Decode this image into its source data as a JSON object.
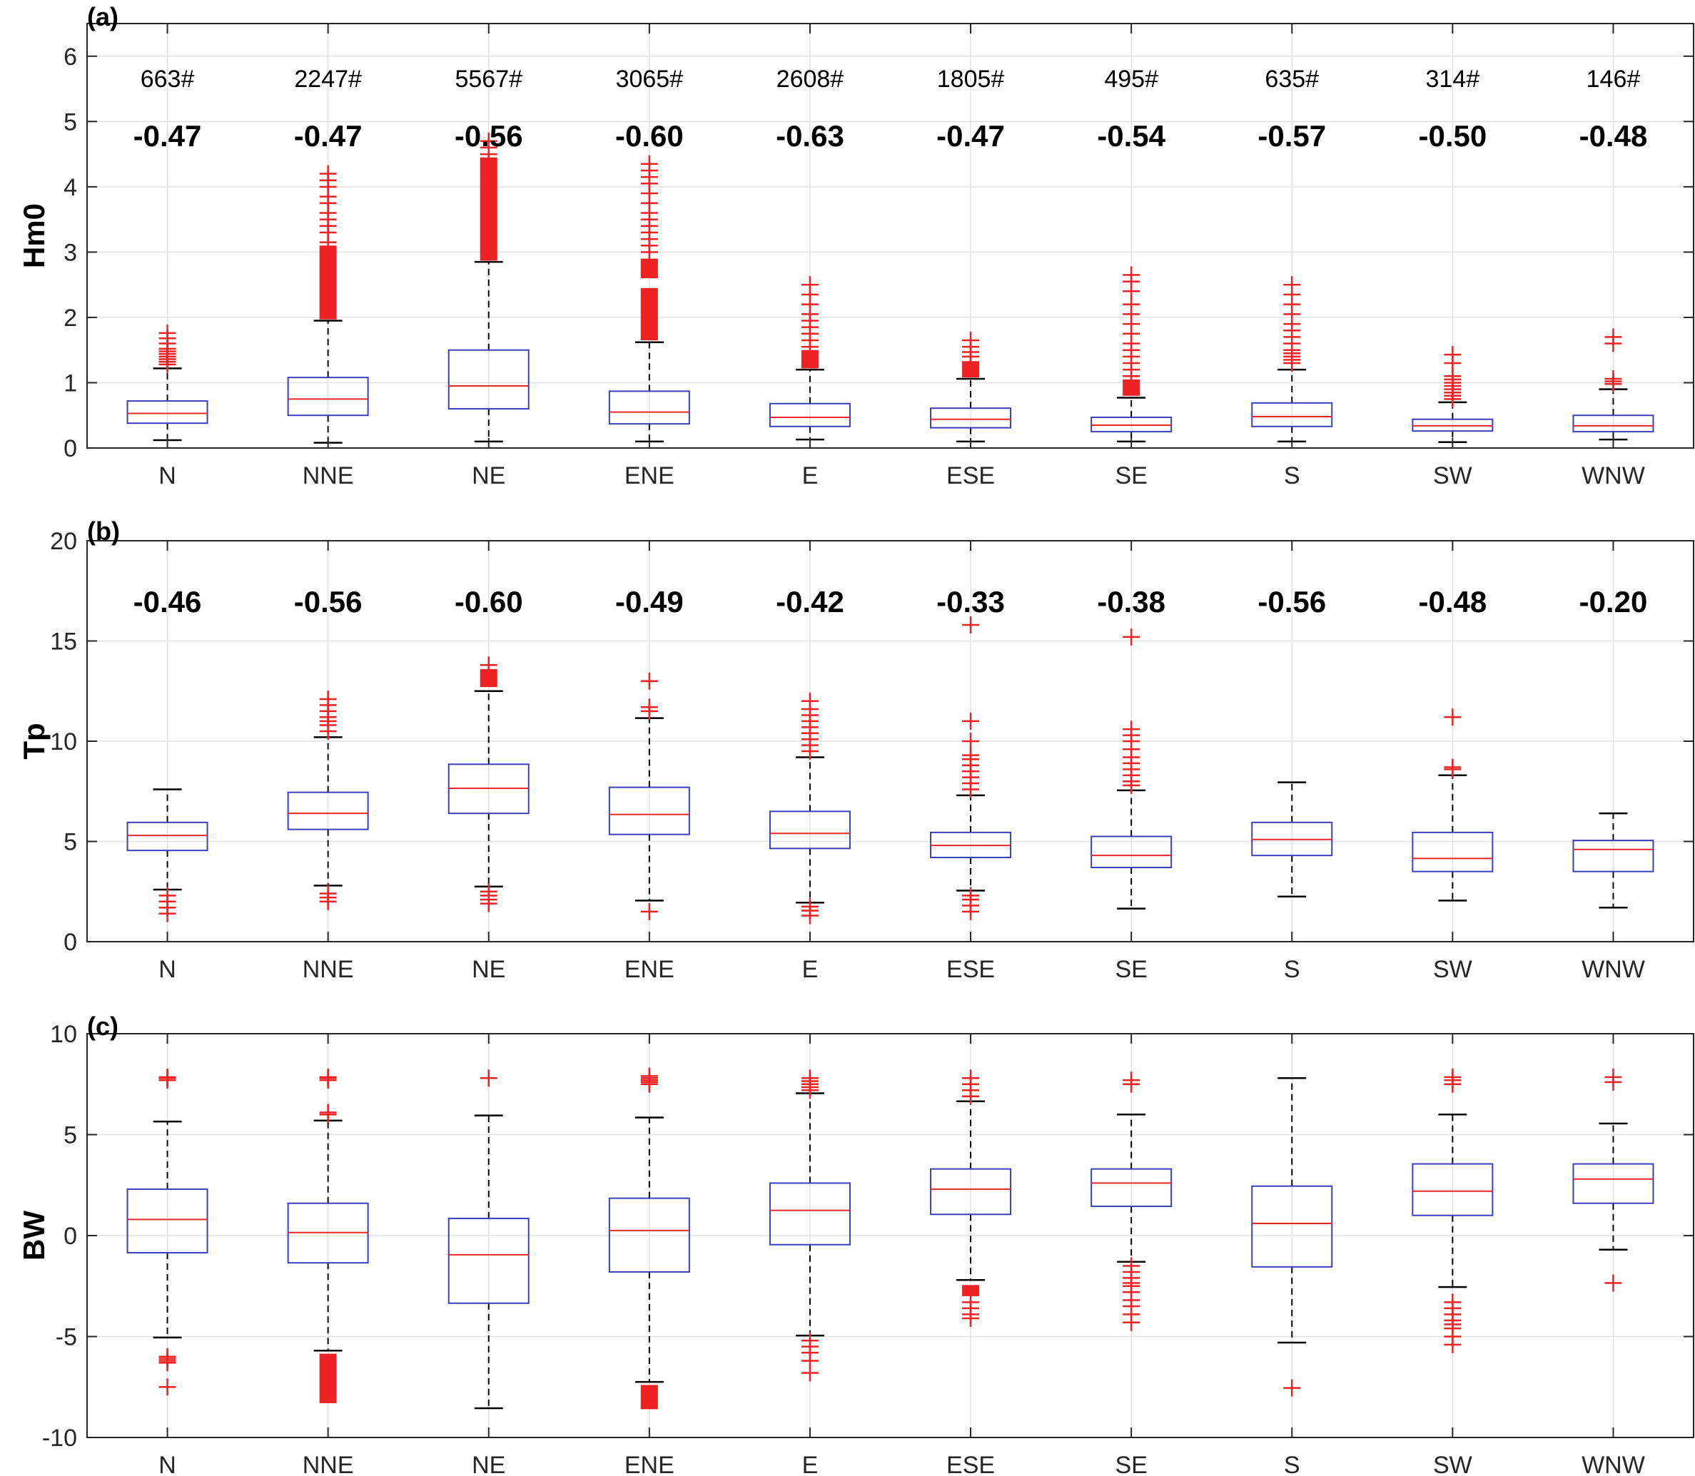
{
  "chart_data": [
    {
      "type": "box",
      "panel_label": "(a)",
      "ylabel": "Hm0",
      "ylim": [
        0,
        6.5
      ],
      "yticks": [
        0,
        1,
        2,
        3,
        4,
        5,
        6
      ],
      "ytick_labels": [
        "0",
        "1",
        "2",
        "3",
        "4",
        "5",
        "6"
      ],
      "grid": true,
      "categories": [
        "N",
        "NNE",
        "NE",
        "ENE",
        "E",
        "ESE",
        "SE",
        "S",
        "SW",
        "WNW"
      ],
      "counts": [
        "663#",
        "2247#",
        "5567#",
        "3065#",
        "2608#",
        "1805#",
        "495#",
        "635#",
        "314#",
        "146#"
      ],
      "correlations": [
        "-0.47",
        "-0.47",
        "-0.56",
        "-0.60",
        "-0.63",
        "-0.47",
        "-0.54",
        "-0.57",
        "-0.50",
        "-0.48"
      ],
      "boxes": [
        {
          "q1": 0.38,
          "median": 0.53,
          "q3": 0.72,
          "whisker_low": 0.12,
          "whisker_high": 1.22,
          "outliers": [
            1.28,
            1.32,
            1.36,
            1.4,
            1.44,
            1.48,
            1.52,
            1.6,
            1.68,
            1.76
          ],
          "dense": []
        },
        {
          "q1": 0.5,
          "median": 0.75,
          "q3": 1.08,
          "whisker_low": 0.08,
          "whisker_high": 1.95,
          "outliers": [
            3.15,
            3.3,
            3.4,
            3.5,
            3.6,
            3.75,
            3.85,
            4.0,
            4.1,
            4.2
          ],
          "dense": [
            [
              1.97,
              3.1
            ]
          ]
        },
        {
          "q1": 0.6,
          "median": 0.95,
          "q3": 1.5,
          "whisker_low": 0.1,
          "whisker_high": 2.85,
          "outliers": [
            4.5,
            4.6,
            4.7
          ],
          "dense": [
            [
              2.87,
              4.45
            ]
          ]
        },
        {
          "q1": 0.37,
          "median": 0.55,
          "q3": 0.87,
          "whisker_low": 0.1,
          "whisker_high": 1.62,
          "outliers": [
            3.0,
            3.1,
            3.2,
            3.3,
            3.4,
            3.5,
            3.6,
            3.75,
            3.9,
            4.05,
            4.15,
            4.25,
            4.35
          ],
          "dense": [
            [
              1.65,
              2.45
            ],
            [
              2.6,
              2.9
            ]
          ]
        },
        {
          "q1": 0.33,
          "median": 0.47,
          "q3": 0.68,
          "whisker_low": 0.13,
          "whisker_high": 1.2,
          "outliers": [
            1.55,
            1.65,
            1.75,
            1.85,
            1.95,
            2.05,
            2.2,
            2.35,
            2.5
          ],
          "dense": [
            [
              1.22,
              1.5
            ]
          ]
        },
        {
          "q1": 0.31,
          "median": 0.44,
          "q3": 0.61,
          "whisker_low": 0.1,
          "whisker_high": 1.06,
          "outliers": [
            1.4,
            1.47,
            1.55,
            1.65
          ],
          "dense": [
            [
              1.08,
              1.33
            ]
          ]
        },
        {
          "q1": 0.25,
          "median": 0.35,
          "q3": 0.47,
          "whisker_low": 0.1,
          "whisker_high": 0.77,
          "outliers": [
            1.1,
            1.2,
            1.3,
            1.4,
            1.5,
            1.6,
            1.75,
            1.9,
            2.05,
            2.2,
            2.4,
            2.55,
            2.65
          ],
          "dense": [
            [
              0.8,
              1.05
            ]
          ]
        },
        {
          "q1": 0.33,
          "median": 0.48,
          "q3": 0.69,
          "whisker_low": 0.1,
          "whisker_high": 1.2,
          "outliers": [
            1.3,
            1.35,
            1.4,
            1.45,
            1.5,
            1.6,
            1.7,
            1.8,
            1.9,
            2.05,
            2.2,
            2.35,
            2.5
          ],
          "dense": []
        },
        {
          "q1": 0.26,
          "median": 0.34,
          "q3": 0.44,
          "whisker_low": 0.09,
          "whisker_high": 0.7,
          "outliers": [
            0.75,
            0.8,
            0.85,
            0.9,
            0.95,
            1.0,
            1.05,
            1.1,
            1.3,
            1.43
          ],
          "dense": []
        },
        {
          "q1": 0.25,
          "median": 0.34,
          "q3": 0.5,
          "whisker_low": 0.13,
          "whisker_high": 0.9,
          "outliers": [
            0.98,
            1.02,
            1.06,
            1.6,
            1.7
          ],
          "dense": []
        }
      ]
    },
    {
      "type": "box",
      "panel_label": "(b)",
      "ylabel": "Tp",
      "ylim": [
        0,
        20
      ],
      "yticks": [
        0,
        5,
        10,
        15,
        20
      ],
      "ytick_labels": [
        "0",
        "5",
        "10",
        "15",
        "20"
      ],
      "grid": true,
      "categories": [
        "N",
        "NNE",
        "NE",
        "ENE",
        "E",
        "ESE",
        "SE",
        "S",
        "SW",
        "WNW"
      ],
      "correlations": [
        "-0.46",
        "-0.56",
        "-0.60",
        "-0.49",
        "-0.42",
        "-0.33",
        "-0.38",
        "-0.56",
        "-0.48",
        "-0.20"
      ],
      "boxes": [
        {
          "q1": 4.55,
          "median": 5.3,
          "q3": 5.95,
          "whisker_low": 2.6,
          "whisker_high": 7.6,
          "outliers": [
            2.3,
            2.0,
            1.7,
            1.4
          ],
          "dense": []
        },
        {
          "q1": 5.6,
          "median": 6.4,
          "q3": 7.45,
          "whisker_low": 2.8,
          "whisker_high": 10.2,
          "outliers": [
            2.4,
            2.2,
            2.0,
            10.5,
            10.8,
            11.0,
            11.2,
            11.5,
            11.8,
            12.1
          ],
          "dense": []
        },
        {
          "q1": 6.4,
          "median": 7.65,
          "q3": 8.85,
          "whisker_low": 2.75,
          "whisker_high": 12.5,
          "outliers": [
            2.5,
            2.3,
            2.1,
            1.9,
            13.8
          ],
          "dense": [
            [
              12.7,
              13.6
            ]
          ]
        },
        {
          "q1": 5.35,
          "median": 6.35,
          "q3": 7.7,
          "whisker_low": 2.05,
          "whisker_high": 11.15,
          "outliers": [
            1.5,
            11.5,
            11.7,
            13.0
          ],
          "dense": []
        },
        {
          "q1": 4.65,
          "median": 5.4,
          "q3": 6.5,
          "whisker_low": 1.95,
          "whisker_high": 9.2,
          "outliers": [
            1.75,
            1.55,
            1.3,
            9.5,
            9.8,
            10.1,
            10.4,
            10.7,
            11.0,
            11.3,
            11.6,
            12.0
          ],
          "dense": []
        },
        {
          "q1": 4.2,
          "median": 4.8,
          "q3": 5.45,
          "whisker_low": 2.55,
          "whisker_high": 7.3,
          "outliers": [
            2.3,
            2.1,
            1.8,
            1.5,
            7.6,
            7.9,
            8.2,
            8.5,
            8.8,
            9.1,
            9.3,
            10.0,
            11.0,
            15.8
          ],
          "dense": []
        },
        {
          "q1": 3.7,
          "median": 4.3,
          "q3": 5.25,
          "whisker_low": 1.65,
          "whisker_high": 7.55,
          "outliers": [
            7.8,
            8.0,
            8.3,
            8.6,
            8.9,
            9.2,
            9.6,
            10.0,
            10.3,
            10.6,
            15.2
          ],
          "dense": []
        },
        {
          "q1": 4.3,
          "median": 5.1,
          "q3": 5.95,
          "whisker_low": 2.25,
          "whisker_high": 7.95,
          "outliers": [],
          "dense": []
        },
        {
          "q1": 3.5,
          "median": 4.15,
          "q3": 5.45,
          "whisker_low": 2.05,
          "whisker_high": 8.3,
          "outliers": [
            8.6,
            8.7,
            11.2
          ],
          "dense": []
        },
        {
          "q1": 3.5,
          "median": 4.6,
          "q3": 5.05,
          "whisker_low": 1.7,
          "whisker_high": 6.4,
          "outliers": [],
          "dense": []
        }
      ]
    },
    {
      "type": "box",
      "panel_label": "(c)",
      "ylabel": "BW",
      "ylim": [
        -10,
        10
      ],
      "yticks": [
        -10,
        -5,
        0,
        5,
        10
      ],
      "ytick_labels": [
        "-10",
        "-5",
        "0",
        "5",
        "10"
      ],
      "grid": true,
      "categories": [
        "N",
        "NNE",
        "NE",
        "ENE",
        "E",
        "ESE",
        "SE",
        "S",
        "SW",
        "WNW"
      ],
      "boxes": [
        {
          "q1": -0.85,
          "median": 0.8,
          "q3": 2.3,
          "whisker_low": -5.05,
          "whisker_high": 5.65,
          "outliers": [
            -6.0,
            -6.1,
            -6.2,
            -6.3,
            -7.5,
            7.7,
            7.8,
            7.85
          ],
          "dense": []
        },
        {
          "q1": -1.35,
          "median": 0.15,
          "q3": 1.6,
          "whisker_low": -5.7,
          "whisker_high": 5.7,
          "outliers": [
            6.0,
            6.1,
            7.7,
            7.8,
            7.85
          ],
          "dense": [
            [
              -8.3,
              -5.85
            ]
          ]
        },
        {
          "q1": -3.35,
          "median": -0.95,
          "q3": 0.85,
          "whisker_low": -8.55,
          "whisker_high": 5.95,
          "outliers": [
            7.8
          ],
          "dense": []
        },
        {
          "q1": -1.8,
          "median": 0.25,
          "q3": 1.85,
          "whisker_low": -7.25,
          "whisker_high": 5.85,
          "outliers": [
            7.5,
            7.6,
            7.7,
            7.8,
            7.9
          ],
          "dense": [
            [
              -8.6,
              -7.4
            ]
          ]
        },
        {
          "q1": -0.45,
          "median": 1.25,
          "q3": 2.6,
          "whisker_low": -4.95,
          "whisker_high": 7.05,
          "outliers": [
            -5.2,
            -5.5,
            -5.8,
            -6.2,
            -6.8,
            7.2,
            7.35,
            7.5,
            7.65,
            7.8
          ],
          "dense": []
        },
        {
          "q1": 1.05,
          "median": 2.3,
          "q3": 3.3,
          "whisker_low": -2.2,
          "whisker_high": 6.65,
          "outliers": [
            -3.3,
            -3.6,
            -3.9,
            -4.1,
            6.9,
            7.2,
            7.5,
            7.8
          ],
          "dense": [
            [
              -3.0,
              -2.45
            ]
          ]
        },
        {
          "q1": 1.45,
          "median": 2.6,
          "q3": 3.3,
          "whisker_low": -1.3,
          "whisker_high": 6.0,
          "outliers": [
            -1.5,
            -1.8,
            -2.1,
            -2.35,
            -2.5,
            -2.8,
            -3.2,
            -3.5,
            -3.9,
            -4.3,
            7.5,
            7.7
          ],
          "dense": []
        },
        {
          "q1": -1.55,
          "median": 0.6,
          "q3": 2.45,
          "whisker_low": -5.3,
          "whisker_high": 7.8,
          "outliers": [
            -7.55
          ],
          "dense": []
        },
        {
          "q1": 1.0,
          "median": 2.2,
          "q3": 3.55,
          "whisker_low": -2.55,
          "whisker_high": 6.0,
          "outliers": [
            -3.3,
            -3.6,
            -3.9,
            -4.2,
            -4.4,
            -4.6,
            -5.0,
            -5.4,
            7.5,
            7.7,
            7.85
          ],
          "dense": []
        },
        {
          "q1": 1.6,
          "median": 2.8,
          "q3": 3.55,
          "whisker_low": -0.7,
          "whisker_high": 5.55,
          "outliers": [
            -2.35,
            7.6,
            7.85
          ],
          "dense": []
        }
      ]
    }
  ]
}
